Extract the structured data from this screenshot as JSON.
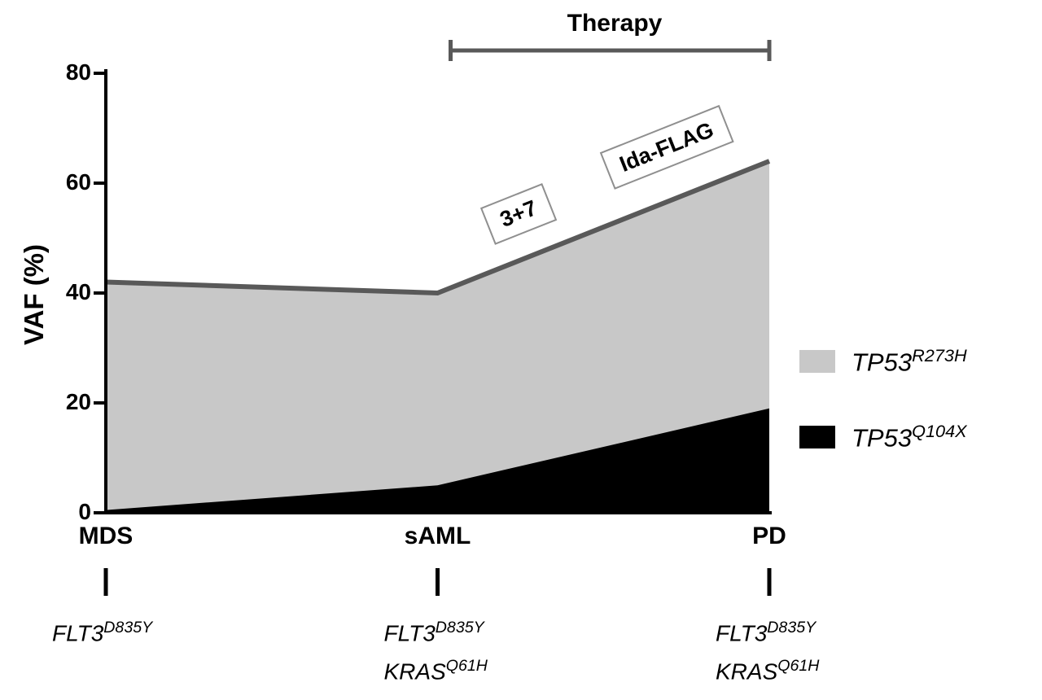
{
  "chart_data": {
    "type": "area",
    "title": "",
    "ylabel": "VAF (%)",
    "xlabel": "",
    "ylim": [
      0,
      80
    ],
    "yticks": [
      0,
      20,
      40,
      60,
      80
    ],
    "grid": false,
    "legend_position": "right",
    "categories": [
      "MDS",
      "sAML",
      "PD"
    ],
    "series": [
      {
        "name": "TP53-R273H",
        "label_base": "TP53",
        "label_sup": "R273H",
        "color": "#c8c8c8",
        "edge_color": "#595959",
        "values": [
          42,
          40,
          64
        ]
      },
      {
        "name": "TP53-Q104X",
        "label_base": "TP53",
        "label_sup": "Q104X",
        "color": "#000000",
        "values": [
          0.5,
          5,
          19
        ]
      }
    ],
    "annotations": {
      "therapy_label": "Therapy",
      "therapy_span_categories": [
        "sAML",
        "PD"
      ],
      "treatment_boxes": [
        {
          "label": "3+7",
          "t": 0.245,
          "offset": -57
        },
        {
          "label": "Ida-FLAG",
          "t": 0.69,
          "offset": -67
        }
      ]
    },
    "x_annotations": [
      {
        "category": "MDS",
        "mutations": [
          {
            "base": "FLT3",
            "sup": "D835Y"
          }
        ]
      },
      {
        "category": "sAML",
        "mutations": [
          {
            "base": "FLT3",
            "sup": "D835Y"
          },
          {
            "base": "KRAS",
            "sup": "Q61H"
          }
        ]
      },
      {
        "category": "PD",
        "mutations": [
          {
            "base": "FLT3",
            "sup": "D835Y"
          },
          {
            "base": "KRAS",
            "sup": "Q61H"
          }
        ]
      }
    ]
  }
}
